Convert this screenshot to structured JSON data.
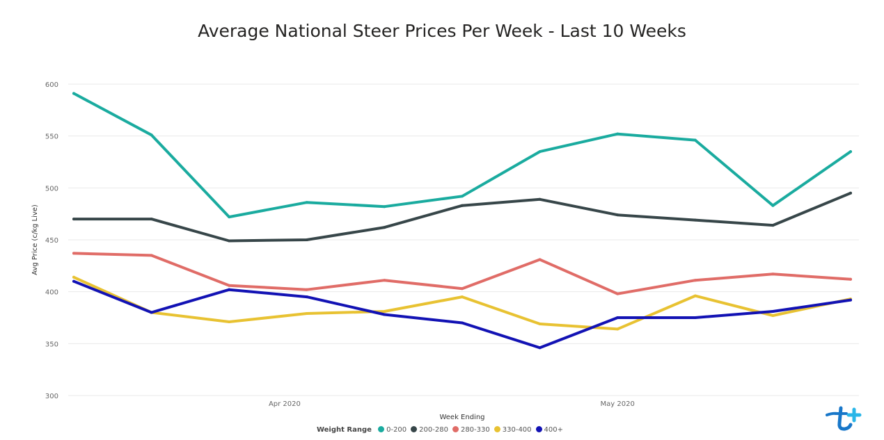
{
  "chart_data": {
    "type": "line",
    "title": "Average National Steer Prices Per Week - Last 10 Weeks",
    "xlabel": "Week Ending",
    "ylabel": "Avg Price (c/kg Live)",
    "ylim": [
      300,
      600
    ],
    "yticks": [
      300,
      350,
      400,
      450,
      500,
      550,
      600
    ],
    "x": [
      "2020-03-13",
      "2020-03-20",
      "2020-03-27",
      "2020-04-03",
      "2020-04-10",
      "2020-04-17",
      "2020-04-24",
      "2020-05-01",
      "2020-05-08",
      "2020-05-15",
      "2020-05-22"
    ],
    "xlim": [
      "2020-03-13",
      "2020-05-22"
    ],
    "x_tick_labels": [
      {
        "label": "Apr 2020",
        "date": "2020-04-01"
      },
      {
        "label": "May 2020",
        "date": "2020-05-01"
      }
    ],
    "grid": true,
    "legend_position": "bottom",
    "legend_title": "Weight Range",
    "series": [
      {
        "name": "0-200",
        "color": "#1aab9f",
        "values": [
          591,
          551,
          472,
          486,
          482,
          492,
          535,
          552,
          546,
          483,
          535
        ]
      },
      {
        "name": "200-280",
        "color": "#374649",
        "values": [
          470,
          470,
          449,
          450,
          462,
          483,
          489,
          474,
          469,
          464,
          495
        ]
      },
      {
        "name": "280-330",
        "color": "#e06c67",
        "values": [
          437,
          435,
          406,
          402,
          411,
          403,
          431,
          398,
          411,
          417,
          412
        ]
      },
      {
        "name": "330-400",
        "color": "#e8c232",
        "values": [
          414,
          380,
          371,
          379,
          381,
          395,
          369,
          364,
          396,
          377,
          393
        ]
      },
      {
        "name": "400+",
        "color": "#1212b4",
        "values": [
          410,
          380,
          402,
          395,
          378,
          370,
          346,
          375,
          375,
          381,
          392
        ]
      }
    ]
  }
}
